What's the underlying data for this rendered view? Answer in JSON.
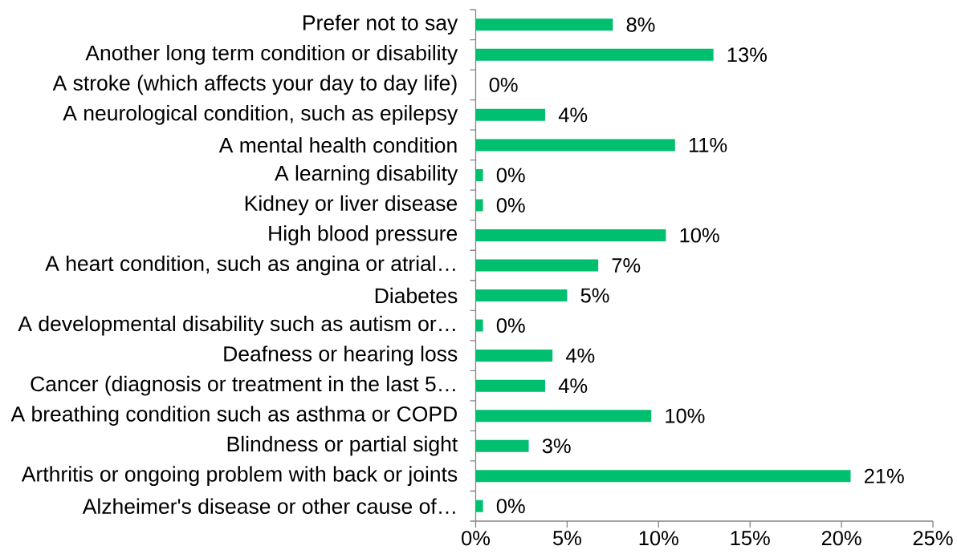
{
  "chart_data": {
    "type": "bar",
    "orientation": "horizontal",
    "categories": [
      "Prefer not to say",
      "Another long term condition or disability",
      "A stroke (which affects your day to day life)",
      "A neurological condition, such as epilepsy",
      "A mental health condition",
      "A learning disability",
      "Kidney or liver disease",
      "High blood pressure",
      "A heart condition, such as angina or atrial…",
      "Diabetes",
      "A developmental disability such as autism or…",
      "Deafness or hearing loss",
      "Cancer (diagnosis or treatment in the last 5…",
      "A breathing condition such as asthma or COPD",
      "Blindness or partial sight",
      "Arthritis or ongoing problem with back or joints",
      "Alzheimer's disease or other cause of…"
    ],
    "values": [
      7.5,
      13.0,
      0,
      3.8,
      10.9,
      0.4,
      0.4,
      10.4,
      6.7,
      5.0,
      0.4,
      4.2,
      3.8,
      9.6,
      2.9,
      20.5,
      0.4
    ],
    "value_labels": [
      "8%",
      "13%",
      "0%",
      "4%",
      "11%",
      "0%",
      "0%",
      "10%",
      "7%",
      "5%",
      "0%",
      "4%",
      "4%",
      "10%",
      "3%",
      "21%",
      "0%"
    ],
    "color": "#00bf6f",
    "xlim": [
      0,
      25
    ],
    "xticks": [
      {
        "value": 0,
        "label": "0%"
      },
      {
        "value": 5,
        "label": "5%"
      },
      {
        "value": 10,
        "label": "10%"
      },
      {
        "value": 15,
        "label": "15%"
      },
      {
        "value": 20,
        "label": "20%"
      },
      {
        "value": 25,
        "label": "25%"
      }
    ]
  }
}
